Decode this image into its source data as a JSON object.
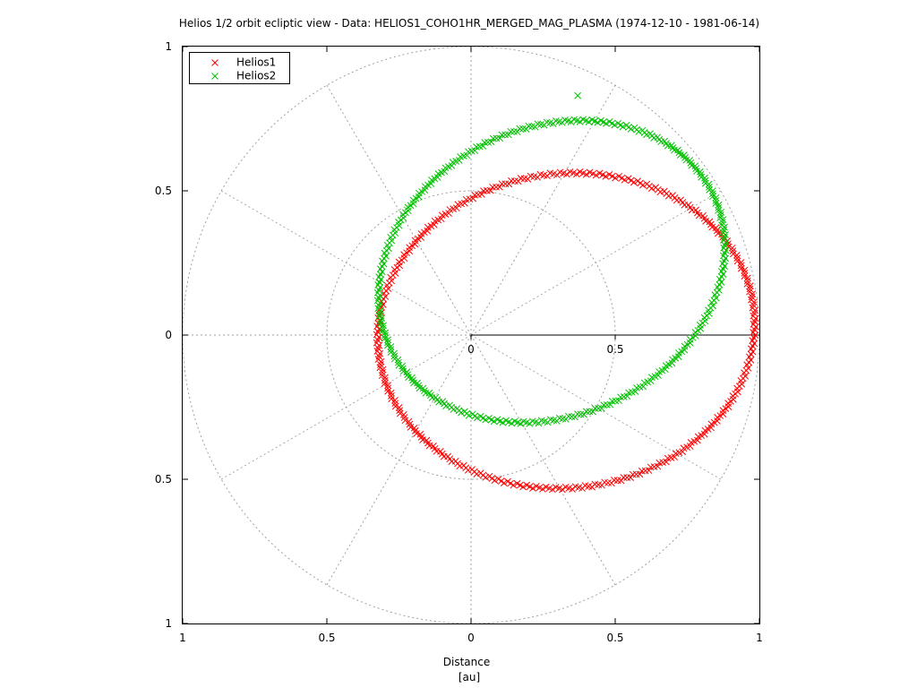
{
  "chart_data": {
    "type": "scatter",
    "title": "Helios 1/2 orbit ecliptic view  -  Data: HELIOS1_COHO1HR_MERGED_MAG_PLASMA (1974-12-10 - 1981-06-14)",
    "xlabel": "Distance",
    "xlabel_unit": "[au]",
    "xlim": [
      -1,
      1
    ],
    "ylim": [
      -1,
      1
    ],
    "x_ticks": [
      -1,
      -0.5,
      0,
      0.5,
      1
    ],
    "y_ticks": [
      -1,
      -0.5,
      0,
      0.5,
      1
    ],
    "x_tick_labels": [
      "1",
      "0.5",
      "0",
      "0.5",
      "1"
    ],
    "y_tick_labels": [
      "1",
      "0.5",
      "0",
      "0.5",
      "1"
    ],
    "polar_grid": true,
    "polar_radii": [
      0.5,
      1
    ],
    "polar_radius_labels": [
      "0",
      "0.5"
    ],
    "legend_position": "top-left",
    "marker": "x",
    "series": [
      {
        "name": "Helios1",
        "color": "#ff0000",
        "orbit_center": [
          0.33,
          0.015
        ],
        "orbit_semi_axes": [
          0.655,
          0.545
        ],
        "orbit_tilt_deg": 7,
        "point_count": 360
      },
      {
        "name": "Helios2",
        "color": "#00c000",
        "orbit_center": [
          0.28,
          0.22
        ],
        "orbit_semi_axes": [
          0.62,
          0.5
        ],
        "orbit_tilt_deg": 25,
        "point_count": 360,
        "outliers": [
          [
            0.37,
            0.83
          ]
        ]
      }
    ]
  }
}
